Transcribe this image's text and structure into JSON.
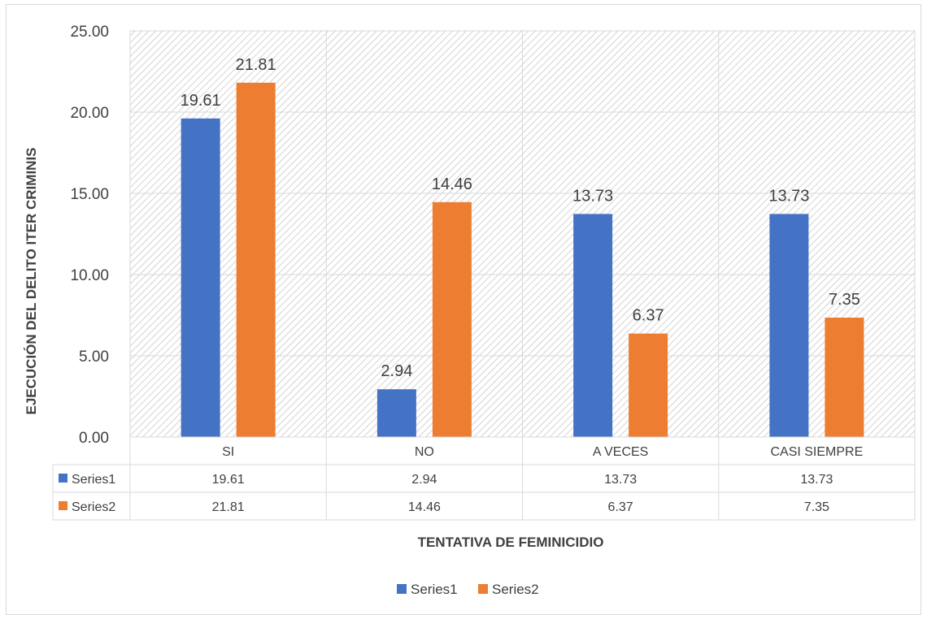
{
  "chart_data": {
    "type": "bar",
    "title": "",
    "xlabel": "TENTATIVA DE FEMINICIDIO",
    "ylabel": "EJECUCIÓN DEL DELITO ITER CRIMINIS",
    "categories": [
      "SI",
      "NO",
      "A VECES",
      "CASI SIEMPRE"
    ],
    "series": [
      {
        "name": "Series1",
        "values": [
          19.61,
          2.94,
          13.73,
          13.73
        ],
        "color": "#4472C4"
      },
      {
        "name": "Series2",
        "values": [
          21.81,
          14.46,
          6.37,
          7.35
        ],
        "color": "#ED7D31"
      }
    ],
    "ylim": [
      0,
      25
    ],
    "yticks": [
      "0.00",
      "5.00",
      "10.00",
      "15.00",
      "20.00",
      "25.00"
    ],
    "grid": true,
    "data_table": true,
    "legend": "bottom"
  }
}
